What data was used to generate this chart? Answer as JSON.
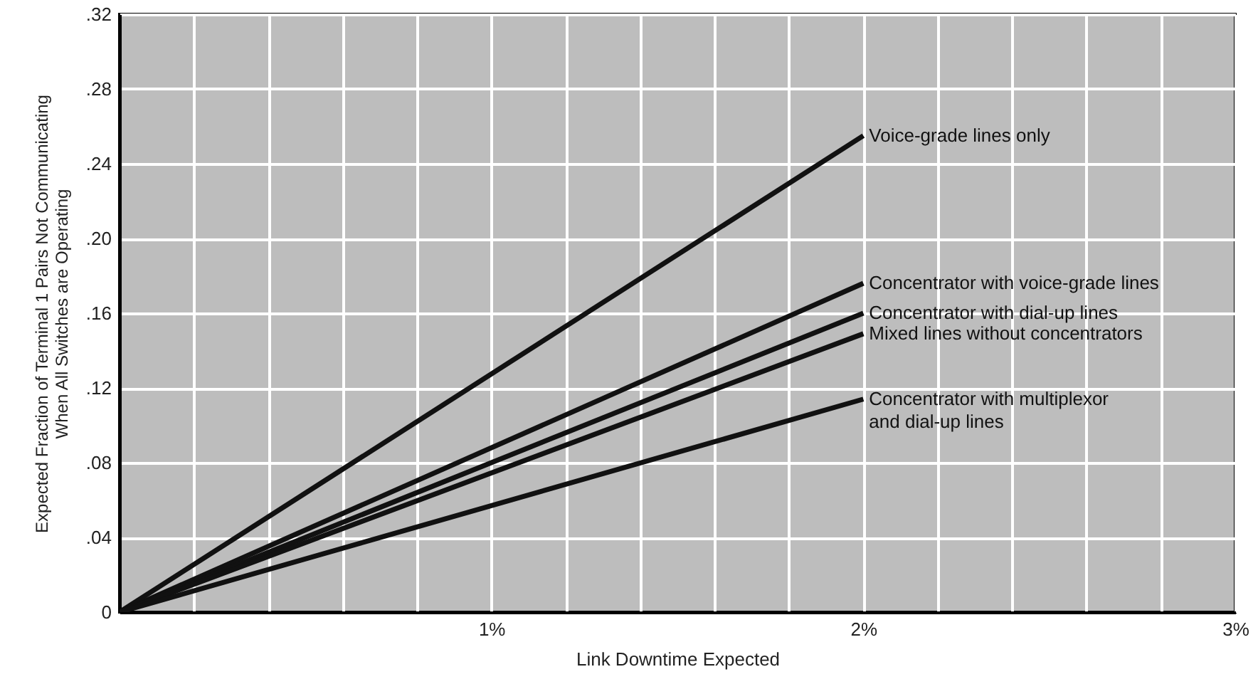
{
  "chart_data": {
    "type": "line",
    "xlabel": "Link Downtime Expected",
    "ylabel": "Expected Fraction of Terminal 1 Pairs Not Communicating\nWhen All Switches are Operating",
    "x": [
      0,
      2
    ],
    "series": [
      {
        "name": "Voice-grade lines only",
        "color": "#111111",
        "values": [
          0,
          0.255
        ]
      },
      {
        "name": "Concentrator with voice-grade lines",
        "color": "#111111",
        "values": [
          0,
          0.176
        ]
      },
      {
        "name": "Concentrator with dial-up lines",
        "color": "#111111",
        "values": [
          0,
          0.16
        ]
      },
      {
        "name": "Mixed lines without concentrators",
        "color": "#111111",
        "values": [
          0,
          0.149
        ]
      },
      {
        "name": "Concentrator with multiplexor\nand dial-up lines",
        "color": "#111111",
        "values": [
          0,
          0.114
        ]
      }
    ],
    "xlim": [
      0,
      3
    ],
    "xticks": [
      {
        "value": 0,
        "label": null
      },
      {
        "value": 0.2,
        "label": null
      },
      {
        "value": 0.4,
        "label": null
      },
      {
        "value": 0.6,
        "label": null
      },
      {
        "value": 0.8,
        "label": null
      },
      {
        "value": 1,
        "label": "1%"
      },
      {
        "value": 1.2,
        "label": null
      },
      {
        "value": 1.4,
        "label": null
      },
      {
        "value": 1.6,
        "label": null
      },
      {
        "value": 1.8,
        "label": null
      },
      {
        "value": 2,
        "label": "2%"
      },
      {
        "value": 2.2,
        "label": null
      },
      {
        "value": 2.4,
        "label": null
      },
      {
        "value": 2.6,
        "label": null
      },
      {
        "value": 2.8,
        "label": null
      },
      {
        "value": 3,
        "label": "3%"
      }
    ],
    "ylim": [
      0,
      0.32
    ],
    "yticks": [
      {
        "value": 0,
        "label": "0"
      },
      {
        "value": 0.04,
        "label": ".04"
      },
      {
        "value": 0.08,
        "label": ".08"
      },
      {
        "value": 0.12,
        "label": ".12"
      },
      {
        "value": 0.16,
        "label": ".16"
      },
      {
        "value": 0.2,
        "label": ".20"
      },
      {
        "value": 0.24,
        "label": ".24"
      },
      {
        "value": 0.28,
        "label": ".28"
      },
      {
        "value": 0.32,
        "label": ".32"
      }
    ],
    "grid": true,
    "line_style": "solid",
    "marker": "none"
  }
}
